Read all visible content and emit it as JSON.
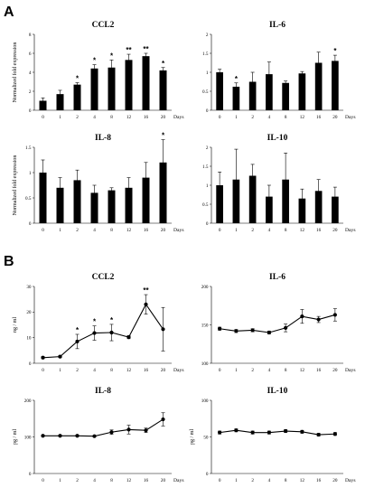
{
  "panel_labels": [
    "A",
    "B"
  ],
  "chart_data": [
    {
      "type": "bar",
      "panel": "A",
      "title": "CCL2",
      "ylabel": "Normalized fold expression",
      "xunit": "Days",
      "categories": [
        "0",
        "1",
        "2",
        "4",
        "8",
        "12",
        "16",
        "20"
      ],
      "values": [
        1.0,
        1.7,
        2.7,
        4.4,
        4.5,
        5.3,
        5.7,
        4.2
      ],
      "errors": [
        0.3,
        0.4,
        0.2,
        0.4,
        0.8,
        0.6,
        0.3,
        0.3
      ],
      "significance": [
        "",
        "",
        "*",
        "*",
        "*",
        "**",
        "**",
        "*"
      ],
      "ylim": [
        0,
        8
      ],
      "yticks": [
        "0",
        "2",
        "4",
        "6",
        "8"
      ]
    },
    {
      "type": "bar",
      "panel": "A",
      "title": "IL-6",
      "ylabel": "",
      "xunit": "Days",
      "categories": [
        "0",
        "1",
        "2",
        "4",
        "8",
        "12",
        "16",
        "20"
      ],
      "values": [
        1.0,
        0.62,
        0.75,
        0.95,
        0.72,
        0.97,
        1.25,
        1.3
      ],
      "errors": [
        0.08,
        0.1,
        0.25,
        0.32,
        0.05,
        0.05,
        0.28,
        0.15
      ],
      "significance": [
        "",
        "*",
        "",
        "",
        "",
        "",
        "",
        "*"
      ],
      "ylim": [
        0,
        2
      ],
      "yticks": [
        "0",
        "0.5",
        "1",
        "1.5",
        "2"
      ]
    },
    {
      "type": "bar",
      "panel": "A",
      "title": "IL-8",
      "ylabel": "Normalized fold expression",
      "xunit": "Days",
      "categories": [
        "0",
        "1",
        "2",
        "4",
        "8",
        "12",
        "16",
        "20"
      ],
      "values": [
        1.0,
        0.7,
        0.85,
        0.6,
        0.65,
        0.7,
        0.9,
        1.2
      ],
      "errors": [
        0.25,
        0.2,
        0.2,
        0.15,
        0.05,
        0.2,
        0.3,
        0.45
      ],
      "significance": [
        "",
        "",
        "",
        "",
        "",
        "",
        "",
        "*"
      ],
      "ylim": [
        0,
        1.5
      ],
      "yticks": [
        "0",
        "0.5",
        "1",
        "1.5"
      ]
    },
    {
      "type": "bar",
      "panel": "A",
      "title": "IL-10",
      "ylabel": "",
      "xunit": "Days",
      "categories": [
        "0",
        "1",
        "2",
        "4",
        "8",
        "12",
        "16",
        "20"
      ],
      "values": [
        1.0,
        1.15,
        1.25,
        0.7,
        1.15,
        0.65,
        0.85,
        0.7
      ],
      "errors": [
        0.35,
        0.8,
        0.3,
        0.3,
        0.7,
        0.25,
        0.3,
        0.25
      ],
      "significance": [
        "",
        "",
        "",
        "",
        "",
        "",
        "",
        ""
      ],
      "ylim": [
        0,
        2
      ],
      "yticks": [
        "0",
        "0.5",
        "1",
        "1.5",
        "2"
      ]
    },
    {
      "type": "line",
      "panel": "B",
      "title": "CCL2",
      "ylabel": "ng / ml",
      "xunit": "Days",
      "categories": [
        "0",
        "1",
        "2",
        "4",
        "8",
        "12",
        "16",
        "20"
      ],
      "values": [
        2.2,
        2.6,
        8.5,
        11.8,
        12.0,
        10.2,
        23.0,
        13.3
      ],
      "errors": [
        0.4,
        0.4,
        2.8,
        2.8,
        3.2,
        0.6,
        3.8,
        8.5
      ],
      "significance": [
        "",
        "",
        "*",
        "*",
        "*",
        "",
        "**",
        ""
      ],
      "ylim": [
        0,
        30
      ],
      "yticks": [
        "0",
        "10",
        "20",
        "30"
      ]
    },
    {
      "type": "line",
      "panel": "B",
      "title": "IL-6",
      "ylabel": "",
      "xunit": "Days",
      "categories": [
        "0",
        "1",
        "2",
        "4",
        "8",
        "12",
        "16",
        "20"
      ],
      "values": [
        145,
        142,
        143,
        140,
        146,
        161,
        157,
        163
      ],
      "errors": [
        2,
        2,
        2,
        2,
        5,
        9,
        4,
        8
      ],
      "significance": [
        "",
        "",
        "",
        "",
        "",
        "",
        "",
        ""
      ],
      "ylim": [
        100,
        200
      ],
      "yticks": [
        "100",
        "150",
        "200"
      ]
    },
    {
      "type": "line",
      "panel": "B",
      "title": "IL-8",
      "ylabel": "pg / ml",
      "xunit": "Days",
      "categories": [
        "0",
        "1",
        "2",
        "4",
        "8",
        "12",
        "16",
        "20"
      ],
      "values": [
        103,
        103,
        103,
        102,
        113,
        120,
        118,
        148
      ],
      "errors": [
        2,
        2,
        2,
        2,
        6,
        12,
        6,
        18
      ],
      "significance": [
        "",
        "",
        "",
        "",
        "",
        "",
        "",
        ""
      ],
      "ylim": [
        0,
        200
      ],
      "yticks": [
        "0",
        "100",
        "200"
      ]
    },
    {
      "type": "line",
      "panel": "B",
      "title": "IL-10",
      "ylabel": "pg / ml",
      "xunit": "Days",
      "categories": [
        "0",
        "1",
        "2",
        "4",
        "8",
        "12",
        "16",
        "20"
      ],
      "values": [
        56,
        59,
        56,
        56,
        58,
        57,
        53,
        54
      ],
      "errors": [
        2,
        2,
        2,
        2,
        2,
        2,
        2,
        2
      ],
      "significance": [
        "",
        "",
        "",
        "",
        "",
        "",
        "",
        ""
      ],
      "ylim": [
        0,
        100
      ],
      "yticks": [
        "0",
        "50",
        "100"
      ]
    }
  ]
}
